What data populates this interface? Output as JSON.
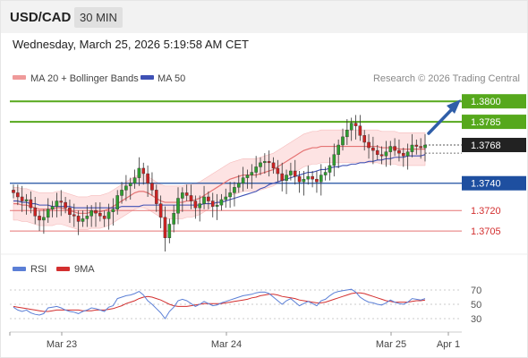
{
  "header": {
    "symbol": "USD/CAD",
    "interval": "30 MIN",
    "timestamp": "Wednesday, March 25, 2026 5:19:58 AM CET"
  },
  "legend": {
    "ma20_label": "MA 20 + Bollinger Bands",
    "ma50_label": "MA 50",
    "copyright": "Research © 2026 Trading Central",
    "rsi_label": "RSI",
    "rsi_ma_label": "9MA"
  },
  "colors": {
    "up": "#2f9e2f",
    "down": "#cc2222",
    "ma20": "#e57373",
    "ma50": "#3f51b5",
    "band_fill": "#fde3e3",
    "resistance": "#56a81c",
    "support_blue": "#1e4fa0",
    "support_red": "#e57373",
    "last_price": "#222222",
    "rsi": "#5b7fd6",
    "rsi_ma": "#d32f2f",
    "arrow": "#2f5ea8"
  },
  "chart_data": {
    "type": "candlestick",
    "ylim": [
      1.369,
      1.3808
    ],
    "x_ticks": [
      "Mar 23",
      "Mar 24",
      "Mar 25",
      "Apr 1"
    ],
    "levels": [
      {
        "value": 1.38,
        "label": "1.3800",
        "kind": "resistance"
      },
      {
        "value": 1.3785,
        "label": "1.3785",
        "kind": "resistance"
      },
      {
        "value": 1.3768,
        "label": "1.3768",
        "kind": "last"
      },
      {
        "value": 1.374,
        "label": "1.3740",
        "kind": "pivot"
      },
      {
        "value": 1.372,
        "label": "1.3720",
        "kind": "support"
      },
      {
        "value": 1.3705,
        "label": "1.3705",
        "kind": "support"
      }
    ],
    "close": [
      1.3733,
      1.373,
      1.3727,
      1.3728,
      1.3722,
      1.3716,
      1.3713,
      1.3715,
      1.3721,
      1.3723,
      1.3727,
      1.3726,
      1.3722,
      1.3717,
      1.3716,
      1.3712,
      1.3714,
      1.3716,
      1.372,
      1.3718,
      1.3716,
      1.3714,
      1.3719,
      1.3721,
      1.3731,
      1.3735,
      1.3738,
      1.374,
      1.3744,
      1.3751,
      1.3747,
      1.374,
      1.3735,
      1.3725,
      1.3715,
      1.37,
      1.371,
      1.3718,
      1.3729,
      1.3733,
      1.3731,
      1.3727,
      1.3722,
      1.3725,
      1.373,
      1.3727,
      1.3723,
      1.3724,
      1.3728,
      1.373,
      1.3733,
      1.3737,
      1.374,
      1.3744,
      1.3746,
      1.3748,
      1.3752,
      1.3755,
      1.3756,
      1.3755,
      1.3751,
      1.3747,
      1.3742,
      1.3746,
      1.3749,
      1.3745,
      1.3741,
      1.3743,
      1.3745,
      1.3743,
      1.3741,
      1.3746,
      1.3748,
      1.3753,
      1.3761,
      1.3768,
      1.3774,
      1.3779,
      1.3784,
      1.3782,
      1.3775,
      1.377,
      1.3766,
      1.3764,
      1.3761,
      1.376,
      1.3763,
      1.3767,
      1.3764,
      1.3762,
      1.376,
      1.3763,
      1.3768,
      1.3767,
      1.3766,
      1.3768
    ],
    "ma20": [
      1.3725,
      1.3725,
      1.3724,
      1.3724,
      1.3723,
      1.3722,
      1.3721,
      1.3721,
      1.3721,
      1.3721,
      1.3722,
      1.3722,
      1.3721,
      1.372,
      1.3719,
      1.3718,
      1.3718,
      1.3718,
      1.3719,
      1.3719,
      1.3719,
      1.372,
      1.3721,
      1.3723,
      1.3725,
      1.3727,
      1.3729,
      1.3731,
      1.3733,
      1.3734,
      1.3734,
      1.3733,
      1.3731,
      1.3729,
      1.3727,
      1.3726,
      1.3726,
      1.3726,
      1.3726,
      1.3726,
      1.3727,
      1.3727,
      1.3728,
      1.3729,
      1.3731,
      1.3733,
      1.3735,
      1.3737,
      1.3739,
      1.3741,
      1.3743,
      1.3744,
      1.3745,
      1.3746,
      1.3746,
      1.3746,
      1.3746,
      1.3747,
      1.3748,
      1.3749,
      1.375,
      1.3752,
      1.3754,
      1.3756,
      1.3758,
      1.376,
      1.3762,
      1.3764,
      1.3765,
      1.3766,
      1.3766,
      1.3767,
      1.3767,
      1.3767,
      1.3767,
      1.3767,
      1.3767,
      1.3767,
      1.3767,
      1.3767,
      1.3767,
      1.3767,
      1.3767,
      1.3767,
      1.3767,
      1.3766,
      1.3766,
      1.3766,
      1.3766,
      1.3765,
      1.3765,
      1.3765,
      1.3765,
      1.3765,
      1.3765,
      1.3765
    ],
    "band_width": 0.0012,
    "ma50": [
      1.3727,
      1.3727,
      1.3726,
      1.3726,
      1.3725,
      1.3725,
      1.3724,
      1.3724,
      1.3724,
      1.3723,
      1.3723,
      1.3723,
      1.3723,
      1.3723,
      1.3722,
      1.3722,
      1.3722,
      1.3722,
      1.3722,
      1.3722,
      1.3722,
      1.3722,
      1.3722,
      1.3722,
      1.3722,
      1.3723,
      1.3723,
      1.3723,
      1.3723,
      1.3723,
      1.3724,
      1.3724,
      1.3724,
      1.3724,
      1.3724,
      1.3724,
      1.3724,
      1.3724,
      1.3724,
      1.3724,
      1.3724,
      1.3724,
      1.3724,
      1.3724,
      1.3725,
      1.3725,
      1.3725,
      1.3726,
      1.3726,
      1.3727,
      1.3728,
      1.3729,
      1.373,
      1.3731,
      1.3732,
      1.3733,
      1.3734,
      1.3736,
      1.3737,
      1.3739,
      1.374,
      1.3741,
      1.3742,
      1.3743,
      1.3744,
      1.3745,
      1.3746,
      1.3747,
      1.3748,
      1.3748,
      1.3749,
      1.375,
      1.375,
      1.3751,
      1.3752,
      1.3752,
      1.3753,
      1.3753,
      1.3754,
      1.3754,
      1.3755,
      1.3755,
      1.3756,
      1.3756,
      1.3757,
      1.3757,
      1.3758,
      1.3758,
      1.3759,
      1.3759,
      1.3759,
      1.376,
      1.376,
      1.376,
      1.376,
      1.3761
    ],
    "rsi_ylim": [
      20,
      80
    ],
    "rsi_ticks": [
      70,
      50,
      30
    ],
    "rsi": [
      46,
      42,
      40,
      42,
      38,
      36,
      35,
      37,
      45,
      46,
      47,
      45,
      42,
      40,
      39,
      37,
      40,
      42,
      45,
      44,
      42,
      40,
      46,
      48,
      58,
      60,
      62,
      63,
      65,
      68,
      63,
      55,
      50,
      44,
      38,
      30,
      40,
      46,
      55,
      57,
      55,
      51,
      47,
      50,
      54,
      51,
      48,
      49,
      52,
      54,
      56,
      58,
      60,
      62,
      63,
      64,
      66,
      67,
      67,
      65,
      60,
      55,
      50,
      55,
      58,
      53,
      48,
      51,
      54,
      51,
      48,
      55,
      57,
      62,
      66,
      68,
      69,
      70,
      71,
      67,
      60,
      56,
      53,
      52,
      50,
      49,
      52,
      56,
      53,
      51,
      50,
      53,
      58,
      57,
      56,
      58
    ],
    "rsi_ma": [
      47,
      46,
      45,
      44,
      43,
      42,
      41,
      40,
      40,
      41,
      42,
      42,
      42,
      42,
      42,
      42,
      41,
      41,
      41,
      42,
      42,
      42,
      43,
      44,
      46,
      48,
      51,
      53,
      55,
      58,
      60,
      61,
      60,
      58,
      56,
      53,
      50,
      48,
      47,
      47,
      47,
      48,
      49,
      50,
      51,
      51,
      51,
      51,
      51,
      52,
      53,
      54,
      55,
      56,
      57,
      59,
      60,
      62,
      63,
      64,
      64,
      63,
      61,
      60,
      59,
      58,
      56,
      55,
      54,
      53,
      52,
      52,
      53,
      55,
      57,
      59,
      61,
      63,
      65,
      66,
      66,
      65,
      63,
      61,
      59,
      57,
      55,
      54,
      53,
      53,
      53,
      53,
      54,
      55,
      55,
      56
    ]
  }
}
